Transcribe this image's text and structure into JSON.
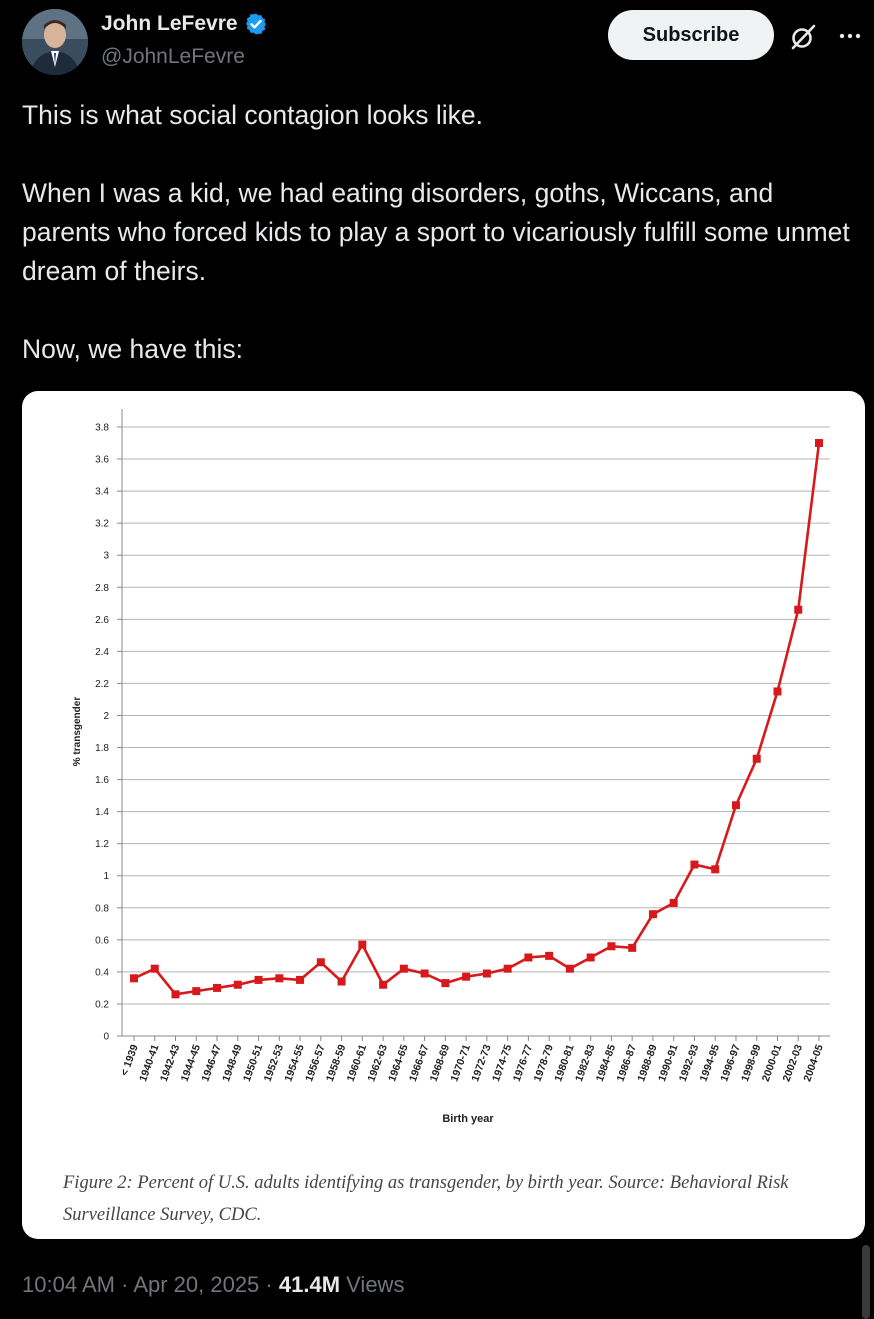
{
  "author": {
    "name": "John LeFevre",
    "handle": "@JohnLeFevre",
    "verified": true,
    "badge_color": "#1d9bf0"
  },
  "actions": {
    "subscribe_label": "Subscribe",
    "grok_icon": "grok-icon",
    "more_icon": "more-options-icon"
  },
  "tweet": {
    "paragraphs": [
      "This is what social contagion looks like.",
      "When I was a kid, we had eating disorders, goths, Wiccans, and parents who forced kids to play a sport to vicariously fulfill some unmet dream of theirs.",
      "Now, we have this:"
    ]
  },
  "figure": {
    "caption": "Figure 2: Percent of U.S. adults identifying as transgender, by birth year. Source: Behavioral Risk Surveillance Survey, CDC."
  },
  "chart_data": {
    "type": "line",
    "title": "",
    "xlabel": "Birth year",
    "ylabel": "% transgender",
    "ylim": [
      0,
      3.8
    ],
    "yticks": [
      "0",
      "0.2",
      "0.4",
      "0.6",
      "0.8",
      "1",
      "1.2",
      "1.4",
      "1.6",
      "1.8",
      "2",
      "2.2",
      "2.4",
      "2.6",
      "2.8",
      "3",
      "3.2",
      "3.4",
      "3.6",
      "3.8"
    ],
    "grid": true,
    "color": "#d7191c",
    "categories": [
      "< 1939",
      "1940-41",
      "1942-43",
      "1944-45",
      "1946-47",
      "1948-49",
      "1950-51",
      "1952-53",
      "1954-55",
      "1956-57",
      "1958-59",
      "1960-61",
      "1962-63",
      "1964-65",
      "1966-67",
      "1968-69",
      "1970-71",
      "1972-73",
      "1974-75",
      "1976-77",
      "1978-79",
      "1980-81",
      "1982-83",
      "1984-85",
      "1986-87",
      "1988-89",
      "1990-91",
      "1992-93",
      "1994-95",
      "1996-97",
      "1998-99",
      "2000-01",
      "2002-03",
      "2004-05"
    ],
    "values": [
      0.36,
      0.42,
      0.26,
      0.28,
      0.3,
      0.32,
      0.35,
      0.36,
      0.35,
      0.46,
      0.34,
      0.57,
      0.32,
      0.42,
      0.39,
      0.33,
      0.37,
      0.39,
      0.42,
      0.49,
      0.5,
      0.42,
      0.49,
      0.56,
      0.55,
      0.76,
      0.83,
      1.07,
      1.04,
      1.44,
      1.73,
      2.15,
      2.66,
      3.7
    ]
  },
  "footer": {
    "time": "10:04 AM",
    "separator": "·",
    "date": "Apr 20, 2025",
    "views_count": "41.4M",
    "views_label": "Views"
  }
}
